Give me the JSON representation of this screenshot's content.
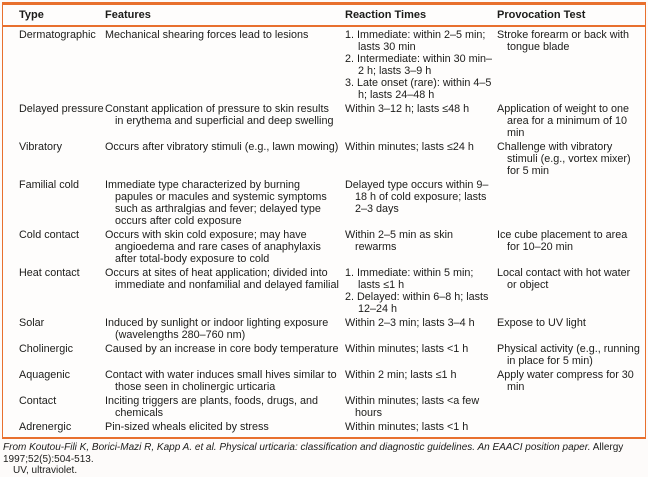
{
  "colors": {
    "table_border": "#e8702e",
    "text": "#1c1c1a",
    "background": "#fdfbfa"
  },
  "table": {
    "columns": {
      "type": "Type",
      "features": "Features",
      "reaction_times": "Reaction Times",
      "provocation_test": "Provocation Test"
    },
    "rows": [
      {
        "type": "Dermatographic",
        "features": "Mechanical shearing forces lead to lesions",
        "reaction": [
          "1. Immediate: within 2–5 min; lasts 30 min",
          "2. Intermediate: within 30 min–2 h; lasts 3–9 h",
          "3. Late onset (rare): within 4–5 h; lasts 24–48 h"
        ],
        "provocation": "Stroke forearm or back with tongue blade"
      },
      {
        "type": "Delayed pressure",
        "features": "Constant application of pressure to skin results in erythema and superficial and deep swelling",
        "reaction": [
          "Within 3–12 h; lasts ≤48 h"
        ],
        "provocation": "Application of weight to one area for a minimum of 10 min"
      },
      {
        "type": "Vibratory",
        "features": "Occurs after vibratory stimuli (e.g., lawn mowing)",
        "reaction": [
          "Within minutes; lasts ≤24 h"
        ],
        "provocation": "Challenge with vibratory stimuli (e.g., vortex mixer) for 5 min"
      },
      {
        "type": "Familial cold",
        "features": "Immediate type characterized by burning papules or macules and systemic symptoms such as arthralgias and fever; delayed type occurs after cold exposure",
        "reaction": [
          "Delayed type occurs within 9–18 h of cold exposure; lasts 2–3 days"
        ],
        "provocation": ""
      },
      {
        "type": "Cold contact",
        "features": "Occurs with skin cold exposure; may have angioedema and rare cases of anaphylaxis after total-body exposure to cold",
        "reaction": [
          "Within 2–5 min as skin rewarms"
        ],
        "provocation": "Ice cube placement to area for 10–20 min"
      },
      {
        "type": "Heat contact",
        "features": "Occurs at sites of heat application; divided into immediate and nonfamilial and delayed familial",
        "reaction": [
          "1. Immediate: within 5 min; lasts ≤1 h",
          "2. Delayed: within 6–8 h; lasts 12–24 h"
        ],
        "provocation": "Local contact with hot water or object"
      },
      {
        "type": "Solar",
        "features": "Induced by sunlight or indoor lighting exposure (wavelengths 280–760 nm)",
        "reaction": [
          "Within 2–3 min; lasts 3–4 h"
        ],
        "provocation": "Expose to UV light"
      },
      {
        "type": "Cholinergic",
        "features": "Caused by an increase in core body temperature",
        "reaction": [
          "Within minutes; lasts <1 h"
        ],
        "provocation": "Physical activity (e.g., running in place for 5 min)"
      },
      {
        "type": "Aquagenic",
        "features": "Contact with water induces small hives similar to those seen in cholinergic urticaria",
        "reaction": [
          "Within 2 min; lasts ≤1 h"
        ],
        "provocation": "Apply water compress for 30 min"
      },
      {
        "type": "Contact",
        "features": "Inciting triggers are plants, foods, drugs, and chemicals",
        "reaction": [
          "Within minutes; lasts <a few hours"
        ],
        "provocation": ""
      },
      {
        "type": "Adrenergic",
        "features": "Pin-sized wheals elicited by stress",
        "reaction": [
          "Within minutes; lasts <1 h"
        ],
        "provocation": ""
      }
    ]
  },
  "footnotes": {
    "source_italic": "From Koutou-Fili K, Borici-Mazi R, Kapp A. et al. Physical urticaria: classification and diagnostic guidelines. An EAACI position paper.",
    "source_roman": " Allergy 1997;52(5):504-513.",
    "abbreviation": "UV, ultraviolet."
  }
}
